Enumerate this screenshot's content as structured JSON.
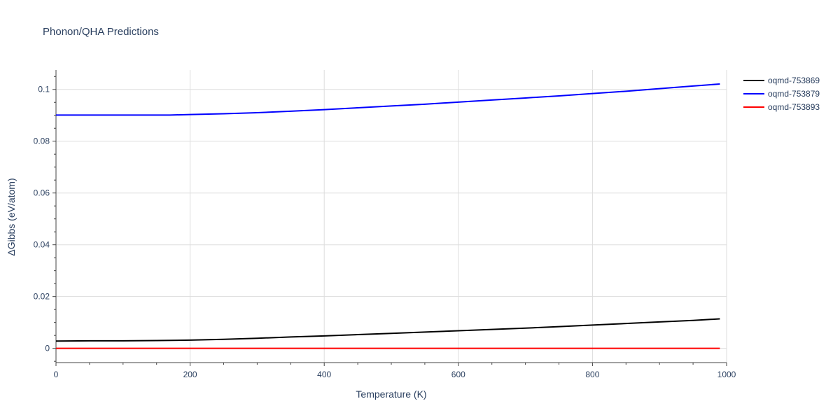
{
  "chart_data": {
    "type": "line",
    "title": "Phonon/QHA Predictions",
    "xlabel": "Temperature (K)",
    "ylabel": "ΔGibbs (eV/atom)",
    "xlim": [
      0,
      1000
    ],
    "ylim": [
      -0.0055,
      0.1075
    ],
    "grid": true,
    "legend_position": "top-right",
    "x_ticks": [
      0,
      200,
      400,
      600,
      800,
      1000
    ],
    "x_tick_labels": [
      "0",
      "200",
      "400",
      "600",
      "800",
      "1000"
    ],
    "y_ticks": [
      0,
      0.02,
      0.04,
      0.06,
      0.08,
      0.1
    ],
    "y_tick_labels": [
      "0",
      "0.02",
      "0.04",
      "0.06",
      "0.08",
      "0.1"
    ],
    "series": [
      {
        "name": "oqmd-753869",
        "color": "#000000",
        "x": [
          0,
          50,
          100,
          150,
          200,
          250,
          300,
          350,
          400,
          450,
          500,
          550,
          600,
          650,
          700,
          750,
          800,
          850,
          900,
          950,
          990
        ],
        "y": [
          0.0028,
          0.0029,
          0.0029,
          0.003,
          0.0032,
          0.0035,
          0.0039,
          0.0044,
          0.0048,
          0.0053,
          0.0058,
          0.0063,
          0.0068,
          0.0073,
          0.0078,
          0.0084,
          0.009,
          0.0096,
          0.0102,
          0.0108,
          0.0114
        ]
      },
      {
        "name": "oqmd-753879",
        "color": "#0000ff",
        "x": [
          0,
          50,
          100,
          150,
          170,
          200,
          250,
          300,
          350,
          400,
          450,
          500,
          550,
          600,
          650,
          700,
          750,
          800,
          850,
          900,
          950,
          990
        ],
        "y": [
          0.0901,
          0.0901,
          0.0901,
          0.0901,
          0.0901,
          0.0903,
          0.0906,
          0.091,
          0.0916,
          0.0922,
          0.0929,
          0.0936,
          0.0943,
          0.0951,
          0.0959,
          0.0967,
          0.0975,
          0.0984,
          0.0993,
          0.1003,
          0.1013,
          0.1021
        ]
      },
      {
        "name": "oqmd-753893",
        "color": "#ff0000",
        "x": [
          0,
          990
        ],
        "y": [
          0,
          0
        ]
      }
    ]
  }
}
